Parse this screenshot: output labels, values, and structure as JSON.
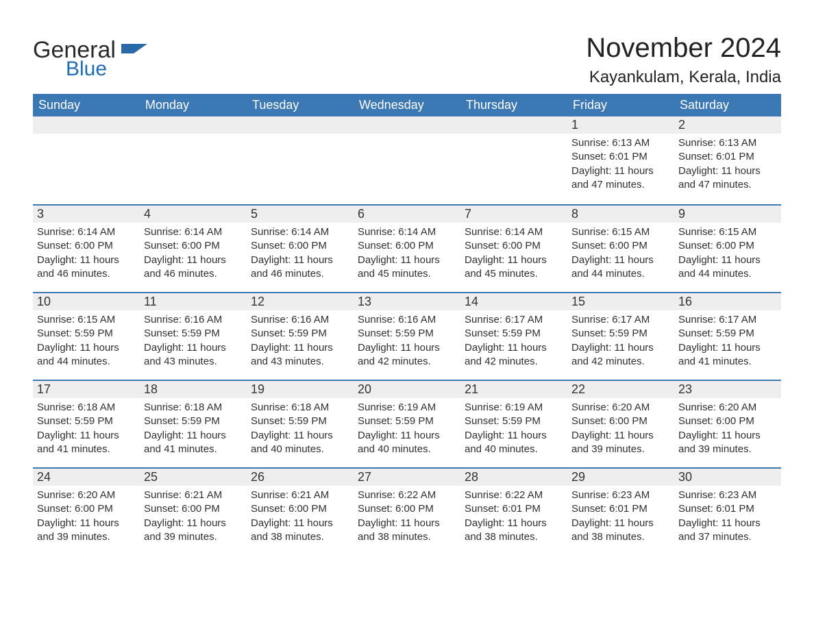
{
  "brand": {
    "word1": "General",
    "word2": "Blue"
  },
  "header": {
    "month_title": "November 2024",
    "location": "Kayankulam, Kerala, India"
  },
  "colors": {
    "blue_header": "#3c78b4",
    "blue_accent": "#2b6aa8",
    "blue_text": "#1f6db3",
    "row_bg": "#eeeeee",
    "text_body": "#303030",
    "white": "#ffffff"
  },
  "calendar": {
    "type": "table",
    "columns": [
      "Sunday",
      "Monday",
      "Tuesday",
      "Wednesday",
      "Thursday",
      "Friday",
      "Saturday"
    ],
    "lead_blanks": 5,
    "days": [
      {
        "n": 1,
        "sunrise": "6:13 AM",
        "sunset": "6:01 PM",
        "daylight": "11 hours and 47 minutes."
      },
      {
        "n": 2,
        "sunrise": "6:13 AM",
        "sunset": "6:01 PM",
        "daylight": "11 hours and 47 minutes."
      },
      {
        "n": 3,
        "sunrise": "6:14 AM",
        "sunset": "6:00 PM",
        "daylight": "11 hours and 46 minutes."
      },
      {
        "n": 4,
        "sunrise": "6:14 AM",
        "sunset": "6:00 PM",
        "daylight": "11 hours and 46 minutes."
      },
      {
        "n": 5,
        "sunrise": "6:14 AM",
        "sunset": "6:00 PM",
        "daylight": "11 hours and 46 minutes."
      },
      {
        "n": 6,
        "sunrise": "6:14 AM",
        "sunset": "6:00 PM",
        "daylight": "11 hours and 45 minutes."
      },
      {
        "n": 7,
        "sunrise": "6:14 AM",
        "sunset": "6:00 PM",
        "daylight": "11 hours and 45 minutes."
      },
      {
        "n": 8,
        "sunrise": "6:15 AM",
        "sunset": "6:00 PM",
        "daylight": "11 hours and 44 minutes."
      },
      {
        "n": 9,
        "sunrise": "6:15 AM",
        "sunset": "6:00 PM",
        "daylight": "11 hours and 44 minutes."
      },
      {
        "n": 10,
        "sunrise": "6:15 AM",
        "sunset": "5:59 PM",
        "daylight": "11 hours and 44 minutes."
      },
      {
        "n": 11,
        "sunrise": "6:16 AM",
        "sunset": "5:59 PM",
        "daylight": "11 hours and 43 minutes."
      },
      {
        "n": 12,
        "sunrise": "6:16 AM",
        "sunset": "5:59 PM",
        "daylight": "11 hours and 43 minutes."
      },
      {
        "n": 13,
        "sunrise": "6:16 AM",
        "sunset": "5:59 PM",
        "daylight": "11 hours and 42 minutes."
      },
      {
        "n": 14,
        "sunrise": "6:17 AM",
        "sunset": "5:59 PM",
        "daylight": "11 hours and 42 minutes."
      },
      {
        "n": 15,
        "sunrise": "6:17 AM",
        "sunset": "5:59 PM",
        "daylight": "11 hours and 42 minutes."
      },
      {
        "n": 16,
        "sunrise": "6:17 AM",
        "sunset": "5:59 PM",
        "daylight": "11 hours and 41 minutes."
      },
      {
        "n": 17,
        "sunrise": "6:18 AM",
        "sunset": "5:59 PM",
        "daylight": "11 hours and 41 minutes."
      },
      {
        "n": 18,
        "sunrise": "6:18 AM",
        "sunset": "5:59 PM",
        "daylight": "11 hours and 41 minutes."
      },
      {
        "n": 19,
        "sunrise": "6:18 AM",
        "sunset": "5:59 PM",
        "daylight": "11 hours and 40 minutes."
      },
      {
        "n": 20,
        "sunrise": "6:19 AM",
        "sunset": "5:59 PM",
        "daylight": "11 hours and 40 minutes."
      },
      {
        "n": 21,
        "sunrise": "6:19 AM",
        "sunset": "5:59 PM",
        "daylight": "11 hours and 40 minutes."
      },
      {
        "n": 22,
        "sunrise": "6:20 AM",
        "sunset": "6:00 PM",
        "daylight": "11 hours and 39 minutes."
      },
      {
        "n": 23,
        "sunrise": "6:20 AM",
        "sunset": "6:00 PM",
        "daylight": "11 hours and 39 minutes."
      },
      {
        "n": 24,
        "sunrise": "6:20 AM",
        "sunset": "6:00 PM",
        "daylight": "11 hours and 39 minutes."
      },
      {
        "n": 25,
        "sunrise": "6:21 AM",
        "sunset": "6:00 PM",
        "daylight": "11 hours and 39 minutes."
      },
      {
        "n": 26,
        "sunrise": "6:21 AM",
        "sunset": "6:00 PM",
        "daylight": "11 hours and 38 minutes."
      },
      {
        "n": 27,
        "sunrise": "6:22 AM",
        "sunset": "6:00 PM",
        "daylight": "11 hours and 38 minutes."
      },
      {
        "n": 28,
        "sunrise": "6:22 AM",
        "sunset": "6:01 PM",
        "daylight": "11 hours and 38 minutes."
      },
      {
        "n": 29,
        "sunrise": "6:23 AM",
        "sunset": "6:01 PM",
        "daylight": "11 hours and 38 minutes."
      },
      {
        "n": 30,
        "sunrise": "6:23 AM",
        "sunset": "6:01 PM",
        "daylight": "11 hours and 37 minutes."
      }
    ],
    "labels": {
      "sunrise": "Sunrise:",
      "sunset": "Sunset:",
      "daylight": "Daylight:"
    }
  }
}
